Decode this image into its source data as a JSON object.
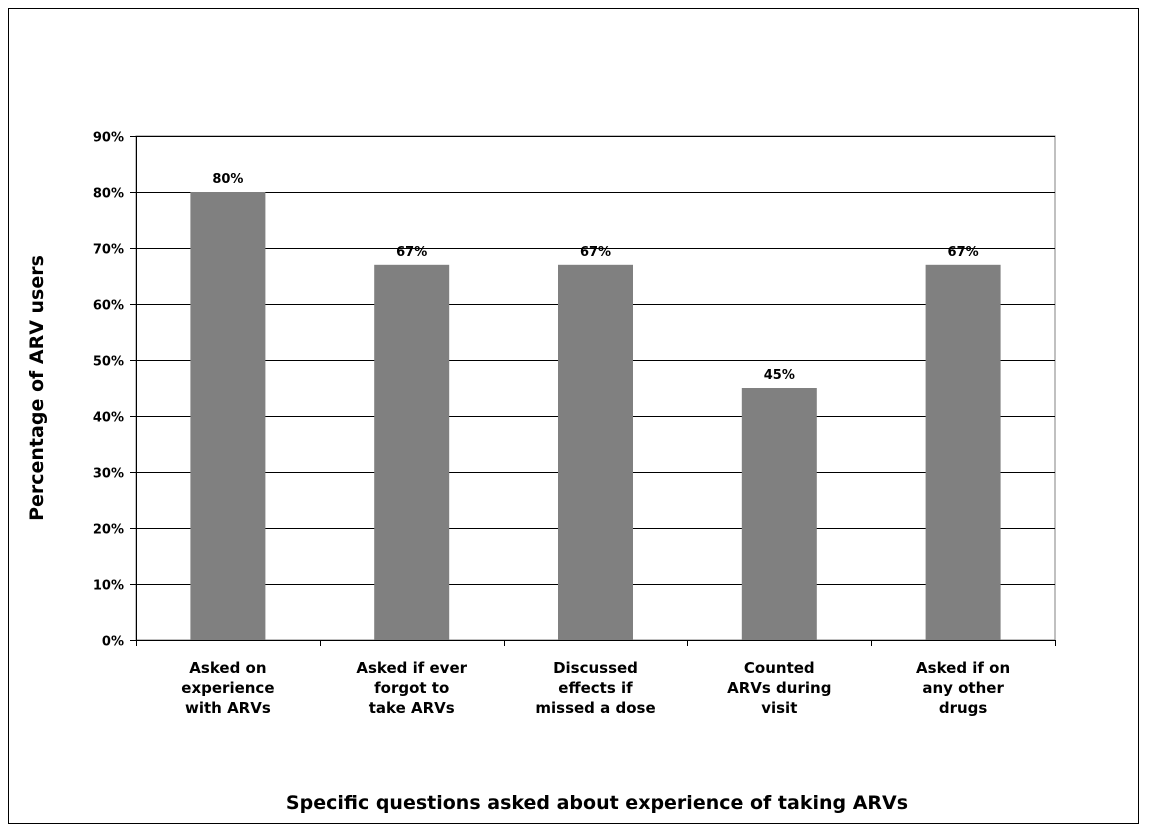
{
  "chart_data": {
    "type": "bar",
    "title": "",
    "xlabel": "Specific questions asked about experience of taking ARVs",
    "ylabel": "Percentage of ARV users",
    "categories": [
      [
        "Asked on",
        "experience",
        "with ARVs"
      ],
      [
        "Asked if ever",
        "forgot to",
        "take ARVs"
      ],
      [
        "Discussed",
        "effects if",
        "missed a dose"
      ],
      [
        "Counted",
        "ARVs during",
        "visit"
      ],
      [
        "Asked if on",
        "any other",
        "drugs"
      ]
    ],
    "values": [
      80,
      67,
      67,
      45,
      67
    ],
    "data_labels": [
      "80%",
      "67%",
      "67%",
      "45%",
      "67%"
    ],
    "ylim": [
      0,
      90
    ],
    "yticks": [
      0,
      10,
      20,
      30,
      40,
      50,
      60,
      70,
      80,
      90
    ],
    "ytick_labels": [
      "0%",
      "10%",
      "20%",
      "30%",
      "40%",
      "50%",
      "60%",
      "70%",
      "80%",
      "90%"
    ],
    "grid": true,
    "legend": "none",
    "bar_color": "#808080",
    "grid_color": "#000000"
  }
}
